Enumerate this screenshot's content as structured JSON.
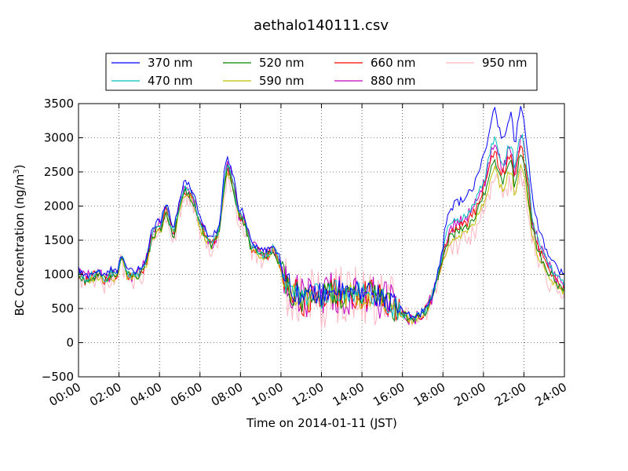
{
  "chart_data": {
    "type": "line",
    "title": "aethalo140111.csv",
    "xlabel": "Time on 2014-01-11 (JST)",
    "ylabel": "BC Concentration (ng/m",
    "ylabel_sup": "3",
    "ylabel_tail": ")",
    "xlim": [
      0,
      24
    ],
    "ylim": [
      -500,
      3500
    ],
    "xticks": [
      0,
      2,
      4,
      6,
      8,
      10,
      12,
      14,
      16,
      18,
      20,
      22,
      24
    ],
    "xtick_labels": [
      "00:00",
      "02:00",
      "04:00",
      "06:00",
      "08:00",
      "10:00",
      "12:00",
      "14:00",
      "16:00",
      "18:00",
      "20:00",
      "22:00",
      "24:00"
    ],
    "yticks": [
      -500,
      0,
      500,
      1000,
      1500,
      2000,
      2500,
      3000,
      3500
    ],
    "ytick_labels": [
      "−500",
      "0",
      "500",
      "1000",
      "1500",
      "2000",
      "2500",
      "3000",
      "3500"
    ],
    "grid": true,
    "legend_position": "top-center",
    "series": [
      {
        "name": "370 nm",
        "color": "#0000ff"
      },
      {
        "name": "470 nm",
        "color": "#00bfbf"
      },
      {
        "name": "520 nm",
        "color": "#008000"
      },
      {
        "name": "590 nm",
        "color": "#bfbf00"
      },
      {
        "name": "660 nm",
        "color": "#ff0000"
      },
      {
        "name": "880 nm",
        "color": "#bf00bf"
      },
      {
        "name": "950 nm",
        "color": "#ffb6c1"
      }
    ],
    "base_profile": [
      [
        0.0,
        1000
      ],
      [
        0.3,
        900
      ],
      [
        0.6,
        950
      ],
      [
        1.0,
        980
      ],
      [
        1.3,
        900
      ],
      [
        1.6,
        1000
      ],
      [
        1.9,
        950
      ],
      [
        2.1,
        1250
      ],
      [
        2.4,
        1000
      ],
      [
        2.7,
        950
      ],
      [
        3.0,
        1000
      ],
      [
        3.3,
        1100
      ],
      [
        3.6,
        1500
      ],
      [
        3.9,
        1650
      ],
      [
        4.1,
        1700
      ],
      [
        4.3,
        1950
      ],
      [
        4.5,
        1750
      ],
      [
        4.7,
        1550
      ],
      [
        4.9,
        1850
      ],
      [
        5.1,
        2100
      ],
      [
        5.3,
        2200
      ],
      [
        5.5,
        2150
      ],
      [
        5.7,
        2050
      ],
      [
        5.9,
        1800
      ],
      [
        6.1,
        1650
      ],
      [
        6.3,
        1550
      ],
      [
        6.5,
        1430
      ],
      [
        6.8,
        1500
      ],
      [
        7.0,
        1700
      ],
      [
        7.2,
        2300
      ],
      [
        7.35,
        2550
      ],
      [
        7.5,
        2450
      ],
      [
        7.7,
        2200
      ],
      [
        7.9,
        1850
      ],
      [
        8.1,
        1800
      ],
      [
        8.3,
        1650
      ],
      [
        8.5,
        1400
      ],
      [
        8.7,
        1350
      ],
      [
        8.9,
        1300
      ],
      [
        9.1,
        1250
      ],
      [
        9.3,
        1250
      ],
      [
        9.6,
        1350
      ],
      [
        9.8,
        1250
      ],
      [
        10.0,
        1100
      ],
      [
        10.2,
        900
      ],
      [
        10.5,
        750
      ],
      [
        10.8,
        700
      ],
      [
        11.1,
        600
      ],
      [
        11.4,
        650
      ],
      [
        11.7,
        700
      ],
      [
        12.0,
        650
      ],
      [
        12.3,
        700
      ],
      [
        12.6,
        750
      ],
      [
        12.9,
        700
      ],
      [
        13.2,
        650
      ],
      [
        13.5,
        700
      ],
      [
        13.8,
        700
      ],
      [
        14.1,
        680
      ],
      [
        14.4,
        720
      ],
      [
        14.7,
        650
      ],
      [
        15.0,
        620
      ],
      [
        15.3,
        580
      ],
      [
        15.6,
        500
      ],
      [
        15.9,
        430
      ],
      [
        16.2,
        380
      ],
      [
        16.5,
        350
      ],
      [
        16.8,
        380
      ],
      [
        17.1,
        450
      ],
      [
        17.4,
        600
      ],
      [
        17.7,
        900
      ],
      [
        18.0,
        1250
      ],
      [
        18.3,
        1550
      ],
      [
        18.6,
        1600
      ],
      [
        18.9,
        1650
      ],
      [
        19.2,
        1700
      ],
      [
        19.5,
        1800
      ],
      [
        19.8,
        2000
      ],
      [
        20.1,
        2200
      ],
      [
        20.35,
        2550
      ],
      [
        20.55,
        2700
      ],
      [
        20.8,
        2450
      ],
      [
        21.0,
        2350
      ],
      [
        21.2,
        2550
      ],
      [
        21.4,
        2650
      ],
      [
        21.55,
        2250
      ],
      [
        21.8,
        2750
      ],
      [
        21.95,
        2700
      ],
      [
        22.2,
        2200
      ],
      [
        22.4,
        1700
      ],
      [
        22.7,
        1350
      ],
      [
        23.0,
        1150
      ],
      [
        23.3,
        1000
      ],
      [
        23.6,
        880
      ],
      [
        23.9,
        800
      ],
      [
        24.0,
        780
      ]
    ]
  }
}
